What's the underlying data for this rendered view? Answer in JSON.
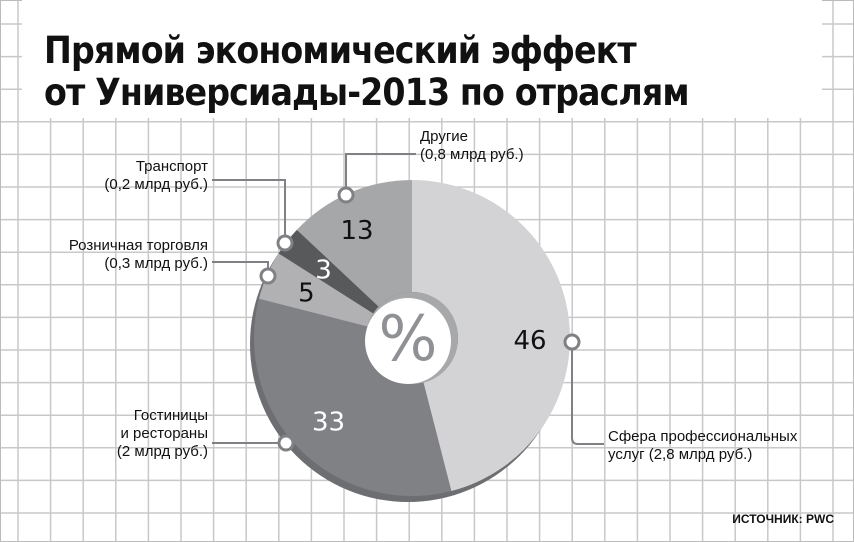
{
  "chart_data": {
    "type": "pie",
    "title": "Прямой экономический эффект от Универсиады-2013 по отраслям",
    "title_lines": [
      "Прямой экономический эффект",
      "от Универсиады-2013 по отраслям"
    ],
    "center_label": "%",
    "unit": "%",
    "slices": [
      {
        "name": "Сфера профессиональных услуг",
        "value": 46,
        "amount": "(2,8 млрд руб.)",
        "color": "#d3d3d5",
        "text_color": "#111111"
      },
      {
        "name": "Гостиницы и рестораны",
        "value": 33,
        "amount": "(2 млрд руб.)",
        "color": "#808184",
        "text_color": "#ffffff"
      },
      {
        "name": "Розничная торговля",
        "value": 5,
        "amount": "(0,3 млрд руб.)",
        "color": "#b1b1b3",
        "text_color": "#111111"
      },
      {
        "name": "Транспорт",
        "value": 3,
        "amount": "(0,2 млрд руб.)",
        "color": "#58595b",
        "text_color": "#ffffff"
      },
      {
        "name": "Другие",
        "value": 13,
        "amount": "(0,8 млрд руб.)",
        "color": "#a6a7a9",
        "text_color": "#111111"
      }
    ],
    "labels": {
      "prof_l1": "Сфера профессиональных",
      "prof_l2": "услуг (2,8 млрд руб.)",
      "hotel_l1": "Гостиницы",
      "hotel_l2": "и рестораны",
      "hotel_l3": "(2 млрд руб.)"
    },
    "source": "ИСТОЧНИК: PWC"
  }
}
